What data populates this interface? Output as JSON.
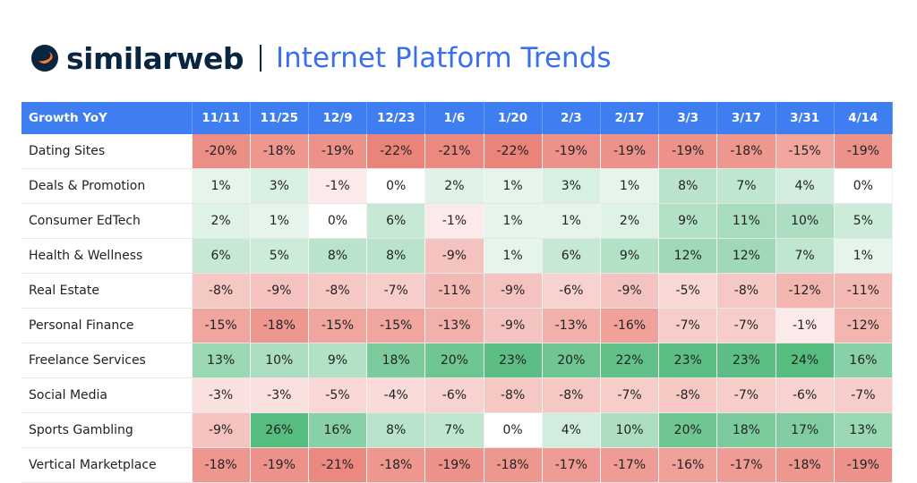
{
  "header": {
    "brand": "similarweb",
    "title": "Internet Platform Trends"
  },
  "table": {
    "columns": [
      "Growth YoY",
      "11/11",
      "11/25",
      "12/9",
      "12/23",
      "1/6",
      "1/20",
      "2/3",
      "2/17",
      "3/3",
      "3/17",
      "3/31",
      "4/14"
    ],
    "rows": [
      [
        "Dating Sites",
        "-20%",
        "-18%",
        "-19%",
        "-22%",
        "-21%",
        "-22%",
        "-19%",
        "-19%",
        "-19%",
        "-18%",
        "-15%",
        "-19%"
      ],
      [
        "Deals & Promotion",
        "1%",
        "3%",
        "-1%",
        "0%",
        "2%",
        "1%",
        "3%",
        "1%",
        "8%",
        "7%",
        "4%",
        "0%"
      ],
      [
        "Consumer EdTech",
        "2%",
        "1%",
        "0%",
        "6%",
        "-1%",
        "1%",
        "1%",
        "2%",
        "9%",
        "11%",
        "10%",
        "5%"
      ],
      [
        "Health & Wellness",
        "6%",
        "5%",
        "8%",
        "8%",
        "-9%",
        "1%",
        "6%",
        "9%",
        "12%",
        "12%",
        "7%",
        "1%"
      ],
      [
        "Real Estate",
        "-8%",
        "-9%",
        "-8%",
        "-7%",
        "-11%",
        "-9%",
        "-6%",
        "-9%",
        "-5%",
        "-8%",
        "-12%",
        "-11%"
      ],
      [
        "Personal Finance",
        "-15%",
        "-18%",
        "-15%",
        "-15%",
        "-13%",
        "-9%",
        "-13%",
        "-16%",
        "-7%",
        "-7%",
        "-1%",
        "-12%"
      ],
      [
        "Freelance Services",
        "13%",
        "10%",
        "9%",
        "18%",
        "20%",
        "23%",
        "20%",
        "22%",
        "23%",
        "23%",
        "24%",
        "16%"
      ],
      [
        "Social Media",
        "-3%",
        "-3%",
        "-5%",
        "-4%",
        "-6%",
        "-8%",
        "-8%",
        "-7%",
        "-8%",
        "-7%",
        "-6%",
        "-7%"
      ],
      [
        "Sports Gambling",
        "-9%",
        "26%",
        "16%",
        "8%",
        "7%",
        "0%",
        "4%",
        "10%",
        "20%",
        "18%",
        "17%",
        "13%"
      ],
      [
        "Vertical Marketplace",
        "-18%",
        "-19%",
        "-21%",
        "-18%",
        "-19%",
        "-18%",
        "-17%",
        "-17%",
        "-16%",
        "-17%",
        "-18%",
        "-19%"
      ]
    ]
  }
}
